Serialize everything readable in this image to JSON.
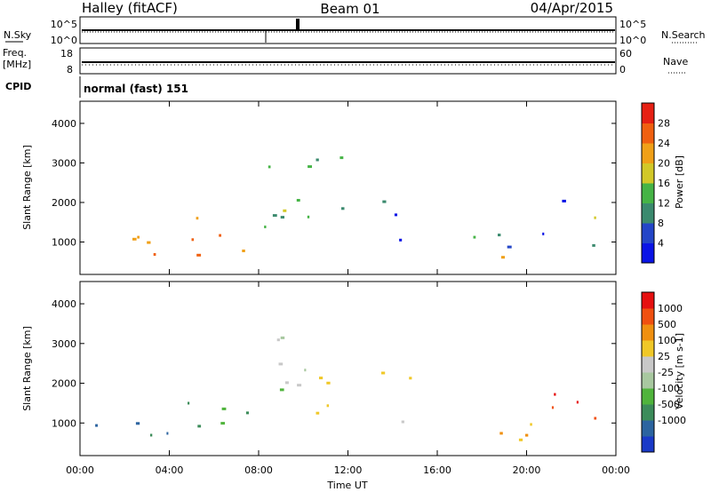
{
  "header": {
    "station": "Halley (fitACF)",
    "beam": "Beam 01",
    "date": "04/Apr/2015"
  },
  "top_panels": {
    "nsky_label": "N.Sky",
    "nsearch_label": "N.Search",
    "noise_ticks_left": [
      "10^5",
      "10^0"
    ],
    "noise_ticks_right": [
      "10^5",
      "10^0"
    ],
    "freq_label": "Freq.",
    "freq_unit": "[MHz]",
    "freq_ticks": [
      "18",
      "8"
    ],
    "nave_label": "Nave",
    "nave_ticks": [
      "60",
      "0"
    ],
    "cpid_label": "CPID",
    "cpid_value": "normal (fast) 151"
  },
  "chart_data": [
    {
      "type": "heatmap",
      "name": "power",
      "ylabel": "Slant Range [km]",
      "xlabel": "Time UT",
      "x_ticks": [
        "00:00",
        "04:00",
        "08:00",
        "12:00",
        "16:00",
        "20:00",
        "00:00"
      ],
      "xlim_hours": [
        0,
        24
      ],
      "y_ticks": [
        1000,
        2000,
        3000,
        4000
      ],
      "ylim": [
        180,
        4560
      ],
      "colorbar": {
        "label": "Power [dB]",
        "ticks": [
          "4",
          "8",
          "12",
          "16",
          "20",
          "24",
          "28"
        ],
        "colors": [
          "#0a14e6",
          "#2446c8",
          "#3b8a6e",
          "#46b446",
          "#d2c828",
          "#f0a018",
          "#f06010",
          "#e62014"
        ]
      },
      "echo_regions": [
        {
          "t0": 0.4,
          "t1": 4.8,
          "r0": 650,
          "r1": 1550,
          "level": 6
        },
        {
          "t0": 4.5,
          "t1": 8.6,
          "r0": 650,
          "r1": 1650,
          "level": 5
        },
        {
          "t0": 8.0,
          "t1": 9.8,
          "r0": 900,
          "r1": 3200,
          "level": 3
        },
        {
          "t0": 9.6,
          "t1": 11.8,
          "r0": 1100,
          "r1": 3500,
          "level": 2
        },
        {
          "t0": 13.2,
          "t1": 14.8,
          "r0": 1700,
          "r1": 2600,
          "level": 1
        },
        {
          "t0": 13.6,
          "t1": 16.2,
          "r0": 700,
          "r1": 1100,
          "level": 1
        },
        {
          "t0": 17.2,
          "t1": 20.5,
          "r0": 600,
          "r1": 1300,
          "level": 2
        },
        {
          "t0": 18.8,
          "t1": 21.4,
          "r0": 600,
          "r1": 900,
          "level": 4
        },
        {
          "t0": 20.4,
          "t1": 22.2,
          "r0": 1200,
          "r1": 2200,
          "level": 1
        },
        {
          "t0": 22.0,
          "t1": 23.9,
          "r0": 900,
          "r1": 1800,
          "level": 3
        }
      ]
    },
    {
      "type": "heatmap",
      "name": "velocity",
      "ylabel": "Slant Range [km]",
      "xlabel": "Time UT",
      "x_ticks": [
        "00:00",
        "04:00",
        "08:00",
        "12:00",
        "16:00",
        "20:00",
        "00:00"
      ],
      "xlim_hours": [
        0,
        24
      ],
      "y_ticks": [
        1000,
        2000,
        3000,
        4000
      ],
      "ylim": [
        180,
        4560
      ],
      "colorbar": {
        "label": "Velocity [m s-1]",
        "ticks": [
          "1000",
          "500",
          "100",
          "25",
          "-25",
          "-100",
          "-500",
          "-1000"
        ],
        "colors": [
          "#1a3ac8",
          "#2c64a0",
          "#3c8c5a",
          "#50b43c",
          "#a8c8a0",
          "#c8c8c8",
          "#f0c828",
          "#f09010",
          "#f05010",
          "#e61010"
        ]
      },
      "echo_regions": [
        {
          "t0": 0.4,
          "t1": 4.8,
          "r0": 650,
          "r1": 1550,
          "level": 2
        },
        {
          "t0": 4.5,
          "t1": 8.6,
          "r0": 650,
          "r1": 1650,
          "level": 3
        },
        {
          "t0": 8.0,
          "t1": 9.8,
          "r0": 900,
          "r1": 3200,
          "level": 4
        },
        {
          "t0": 9.6,
          "t1": 11.8,
          "r0": 1100,
          "r1": 3500,
          "level": 5
        },
        {
          "t0": 13.2,
          "t1": 14.8,
          "r0": 1700,
          "r1": 2600,
          "level": 7
        },
        {
          "t0": 13.6,
          "t1": 16.2,
          "r0": 700,
          "r1": 1100,
          "level": 5
        },
        {
          "t0": 17.2,
          "t1": 20.5,
          "r0": 600,
          "r1": 1300,
          "level": 7
        },
        {
          "t0": 18.8,
          "t1": 21.4,
          "r0": 600,
          "r1": 900,
          "level": 7
        },
        {
          "t0": 20.4,
          "t1": 22.2,
          "r0": 1200,
          "r1": 2200,
          "level": 8
        },
        {
          "t0": 22.0,
          "t1": 23.9,
          "r0": 900,
          "r1": 1800,
          "level": 8
        }
      ]
    }
  ]
}
